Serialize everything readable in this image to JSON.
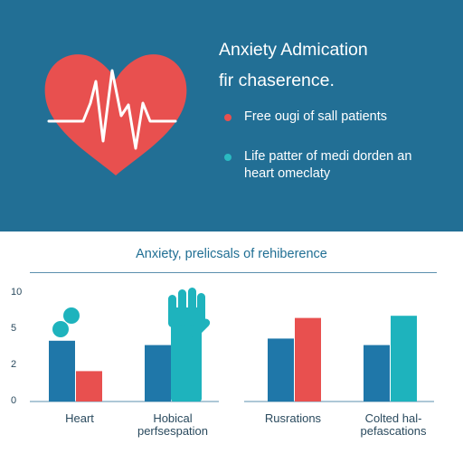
{
  "hero": {
    "title_line1": "Anxiety Admication",
    "title_line2": "fir chaserence.",
    "bullets": [
      {
        "lines": [
          "Free ougi of sall patients"
        ],
        "dot_color": "#e8504f"
      },
      {
        "lines": [
          "Life patter of medi dorden an",
          "heart omeclaty"
        ],
        "dot_color": "#2bbac1"
      }
    ],
    "colors": {
      "background": "#226f95",
      "heart": "#e8504f",
      "pulse": "#ffffff"
    },
    "icons": [
      "heart-icon",
      "heartbeat-line-icon"
    ]
  },
  "chart_title": "Anxiety, prelicsals of rehiberence",
  "colors": {
    "blue": "#1f77a9",
    "red": "#e8504f",
    "teal": "#1eb3bd"
  },
  "chart_data": [
    {
      "type": "bar",
      "title": "",
      "yticks": [
        "10",
        "5",
        "2",
        "0"
      ],
      "ylim": [
        0,
        10
      ],
      "grid": false,
      "categories": [
        "Heart",
        "Hobical\nperfsespation"
      ],
      "series": [
        {
          "color": "#1f77a9",
          "values": [
            5.6,
            5.2
          ]
        },
        {
          "color": "#e8504f",
          "values": [
            2.8,
            null
          ]
        }
      ],
      "decorations": [
        "two-teal-circles-above-heart-bar",
        "teal-hand-icon-over-second-category"
      ]
    },
    {
      "type": "bar",
      "title": "",
      "categories": [
        "Rusrations",
        "Colted hal-\npefascations"
      ],
      "series": [
        {
          "color": "#1f77a9",
          "values": [
            5.8,
            5.2
          ]
        },
        {
          "color": "#e8504f",
          "values": [
            7.7,
            null
          ]
        },
        {
          "color": "#1eb3bd",
          "values": [
            null,
            7.9
          ]
        }
      ]
    }
  ]
}
